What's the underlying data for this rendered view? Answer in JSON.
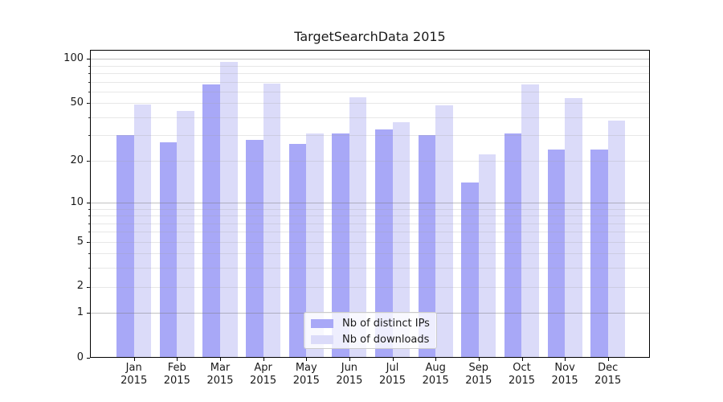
{
  "chart_data": {
    "type": "bar",
    "title": "TargetSearchData 2015",
    "categories": [
      "Jan",
      "Feb",
      "Mar",
      "Apr",
      "May",
      "Jun",
      "Jul",
      "Aug",
      "Sep",
      "Oct",
      "Nov",
      "Dec"
    ],
    "x_tick_year": "2015",
    "series": [
      {
        "name": "Nb of distinct IPs",
        "color": "#a8a8f7",
        "values": [
          30,
          27,
          67,
          28,
          26,
          31,
          33,
          30,
          14,
          31,
          24,
          24
        ]
      },
      {
        "name": "Nb of downloads",
        "color": "#dbdbf9",
        "values": [
          49,
          44,
          95,
          68,
          31,
          55,
          37,
          48,
          22,
          67,
          54,
          38
        ]
      }
    ],
    "yscale": "log1p",
    "y_tick_values": [
      100,
      50,
      20,
      10,
      5,
      2,
      1,
      0
    ],
    "ylim": [
      0,
      115
    ],
    "grid": {
      "major_values": [
        1,
        10,
        100
      ],
      "minor_values": [
        2,
        3,
        4,
        5,
        6,
        7,
        8,
        9,
        20,
        30,
        40,
        50,
        60,
        70,
        80,
        90
      ]
    },
    "legend_position": "lower center",
    "colors": {
      "axis": "#000000",
      "major_grid": "#bdbdbd",
      "minor_grid": "#e6e6e6",
      "background": "#ffffff"
    }
  }
}
